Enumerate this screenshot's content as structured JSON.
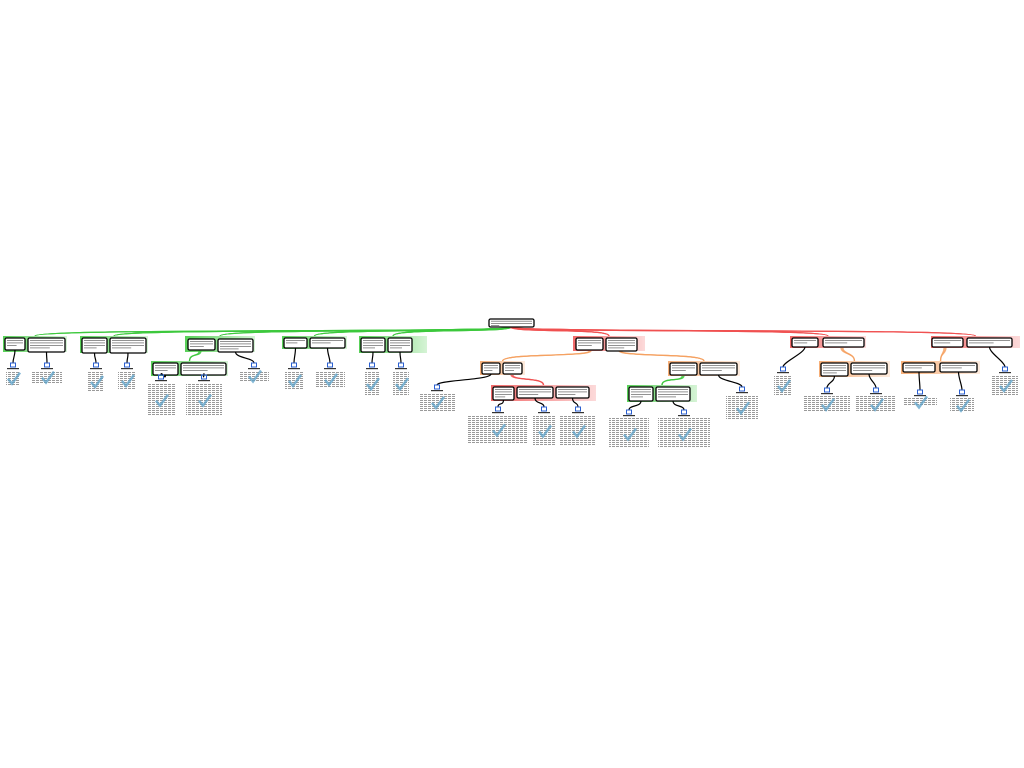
{
  "colors": {
    "support": "#3cc83c",
    "oppose": "#f05050",
    "rebuttal": "#f5a060",
    "node_border": "#000000",
    "connector": "#000000",
    "icon": "#2a5fd0",
    "evidence_check": "#5aa0c8",
    "text_placeholder": "#9a9a9a"
  },
  "icons": {
    "source": "source-icon",
    "evaluation": "checkmark-icon"
  }
}
